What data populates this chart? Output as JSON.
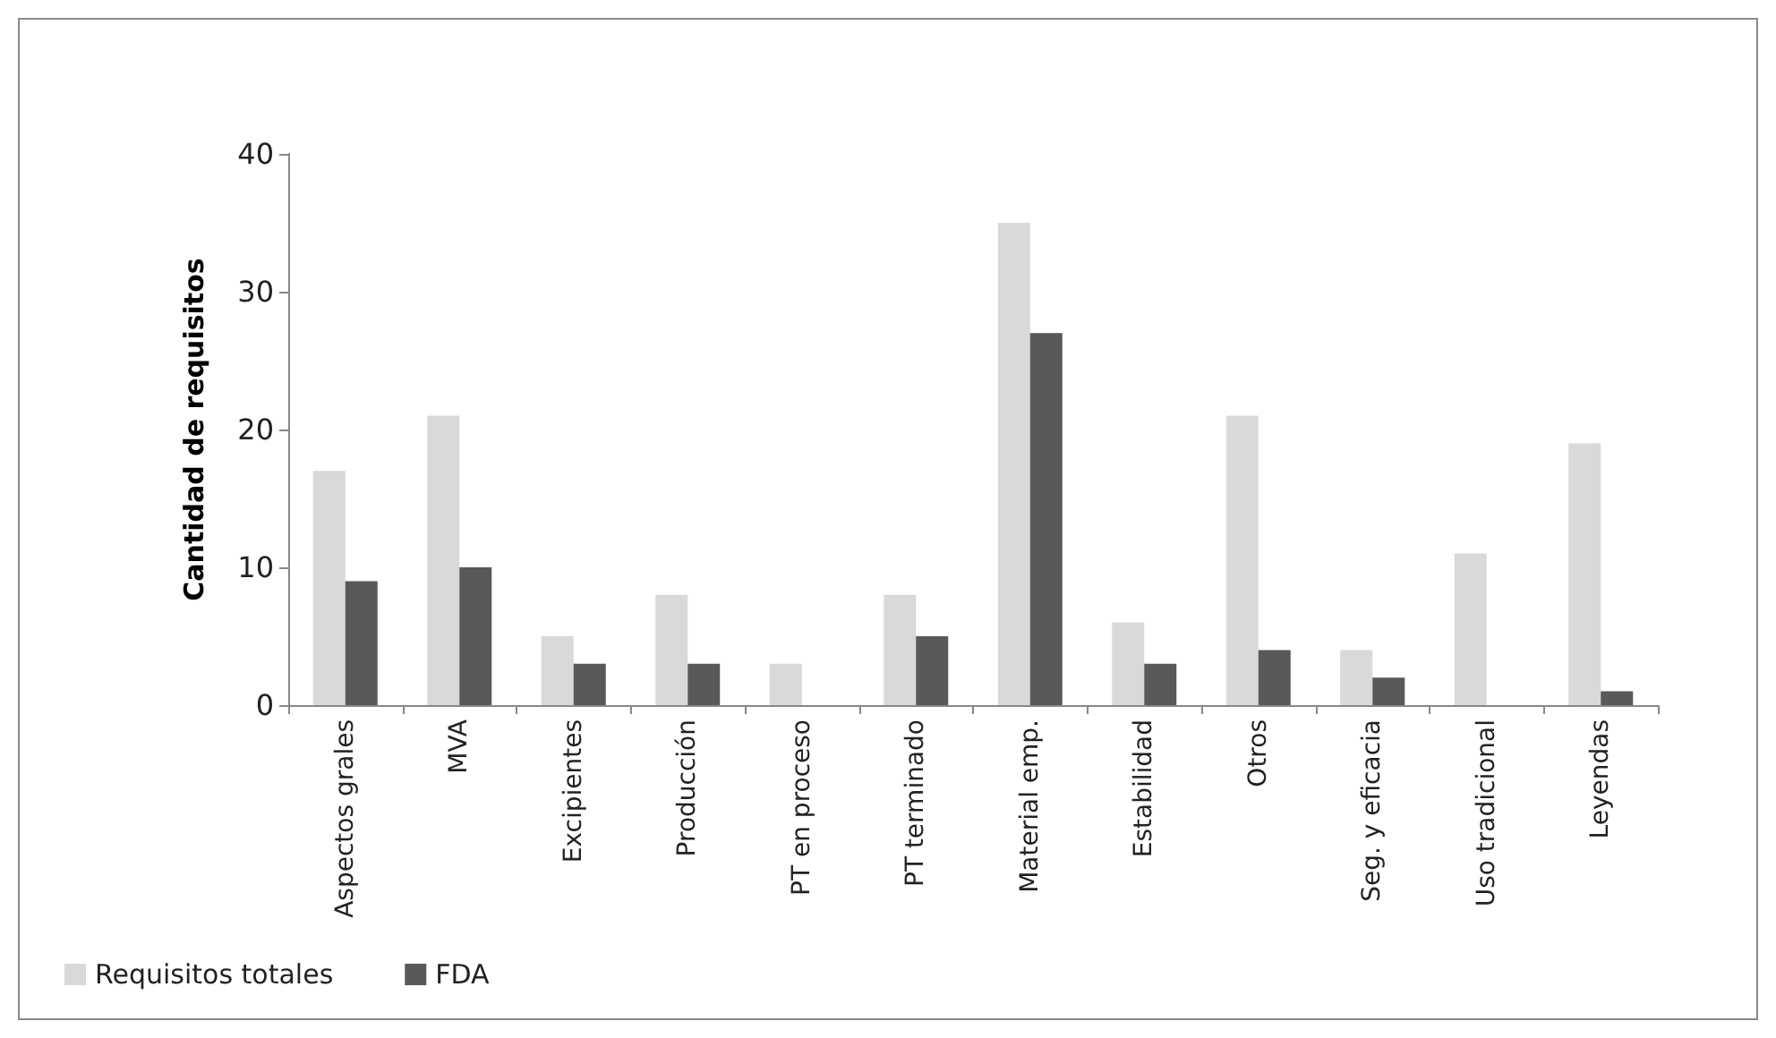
{
  "chart_data": {
    "type": "bar",
    "ylabel": "Cantidad de requisitos",
    "categories": [
      "Aspectos grales",
      "MVA",
      "Excipientes",
      "Producción",
      "PT en proceso",
      "PT terminado",
      "Material emp.",
      "Estabilidad",
      "Otros",
      "Seg. y eficacia",
      "Uso tradicional",
      "Leyendas"
    ],
    "series": [
      {
        "name": "Requisitos totales",
        "color": "#d9d9d9",
        "values": [
          17,
          21,
          5,
          8,
          3,
          8,
          35,
          6,
          21,
          4,
          11,
          19
        ]
      },
      {
        "name": "FDA",
        "color": "#595959",
        "values": [
          9,
          10,
          3,
          3,
          0,
          5,
          27,
          3,
          4,
          2,
          0,
          1
        ]
      }
    ],
    "ylim": [
      0,
      40
    ],
    "yticks": [
      0,
      10,
      20,
      30,
      40
    ],
    "grid": false,
    "legend": "bottom left"
  }
}
